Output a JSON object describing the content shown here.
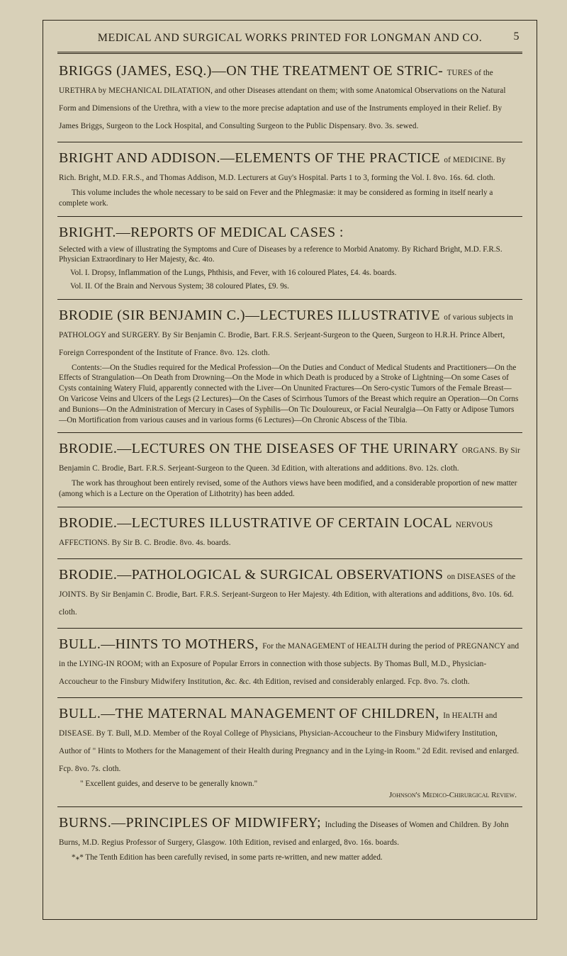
{
  "page": {
    "header_text": "MEDICAL AND SURGICAL WORKS PRINTED FOR LONGMAN AND CO.",
    "page_number": "5",
    "text_color": "#2a2418",
    "bg_color": "#d8d0b8",
    "rule_color": "#2a2418"
  },
  "entries": [
    {
      "title_big": "BRIGGS (JAMES, ESQ.)—ON THE TREATMENT OE STRIC-",
      "title_run": "TURES of the URETHRA by MECHANICAL DILATATION, and other Diseases attendant on them; with some Anatomical Observations on the Natural Form and Dimensions of the Urethra, with a view to the more precise adaptation and use of the Instruments employed in their Relief. By James Briggs, Surgeon to the Lock Hospital, and Consulting Surgeon to the Public Dispensary. 8vo. 3s. sewed."
    },
    {
      "title_big": "BRIGHT AND ADDISON.—ELEMENTS OF THE PRACTICE",
      "title_run": "of MEDICINE. By Rich. Bright, M.D. F.R.S., and Thomas Addison, M.D. Lecturers at Guy's Hospital. Parts 1 to 3, forming the Vol. I. 8vo. 16s. 6d. cloth.",
      "paras": [
        "This volume includes the whole necessary to be said on Fever and the Phlegmasiæ: it may be considered as forming in itself nearly a complete work."
      ]
    },
    {
      "title_big": "BRIGHT.—REPORTS OF MEDICAL CASES :",
      "title_run": "",
      "paras_noindent": [
        "Selected with a view of illustrating the Symptoms and Cure of Diseases by a reference to Morbid Anatomy. By Richard Bright, M.D. F.R.S. Physician Extraordinary to Her Majesty, &c. 4to."
      ],
      "subs": [
        "Vol. I. Dropsy, Inflammation of the Lungs, Phthisis, and Fever, with 16 coloured Plates, £4. 4s. boards.",
        "Vol. II. Of the Brain and Nervous System; 38 coloured Plates, £9. 9s."
      ]
    },
    {
      "title_big": "BRODIE (SIR BENJAMIN C.)—LECTURES ILLUSTRATIVE",
      "title_run": "of various subjects in PATHOLOGY and SURGERY. By Sir Benjamin C. Brodie, Bart. F.R.S. Serjeant-Surgeon to the Queen, Surgeon to H.R.H. Prince Albert, Foreign Correspondent of the Institute of France. 8vo. 12s. cloth.",
      "paras": [
        "Contents:—On the Studies required for the Medical Profession—On the Duties and Conduct of Medical Students and Practitioners—On the Effects of Strangulation—On Death from Drowning—On the Mode in which Death is produced by a Stroke of Lightning—On some Cases of Cysts containing Watery Fluid, apparently connected with the Liver—On Ununited Fractures—On Sero-cystic Tumors of the Female Breast—On Varicose Veins and Ulcers of the Legs (2 Lectures)—On the Cases of Scirrhous Tumors of the Breast which require an Operation—On Corns and Bunions—On the Administration of Mercury in Cases of Syphilis—On Tic Douloureux, or Facial Neuralgia—On Fatty or Adipose Tumors—On Mortification from various causes and in various forms (6 Lectures)—On Chronic Abscess of the Tibia."
      ]
    },
    {
      "title_big": "BRODIE.—LECTURES ON THE DISEASES OF THE URINARY",
      "title_run": "ORGANS. By Sir Benjamin C. Brodie, Bart. F.R.S. Serjeant-Surgeon to the Queen. 3d Edition, with alterations and additions. 8vo. 12s. cloth.",
      "paras": [
        "The work has throughout been entirely revised, some of the Authors views have been modified, and a considerable proportion of new matter (among which is a Lecture on the Operation of Lithotrity) has been added."
      ]
    },
    {
      "title_big": "BRODIE.—LECTURES ILLUSTRATIVE OF CERTAIN LOCAL",
      "title_run": "NERVOUS AFFECTIONS. By Sir B. C. Brodie. 8vo. 4s. boards."
    },
    {
      "title_big": "BRODIE.—PATHOLOGICAL & SURGICAL OBSERVATIONS",
      "title_run": "on DISEASES of the JOINTS. By Sir Benjamin C. Brodie, Bart. F.R.S. Serjeant-Surgeon to Her Majesty. 4th Edition, with alterations and additions, 8vo. 10s. 6d. cloth."
    },
    {
      "title_big": "BULL.—HINTS TO MOTHERS,",
      "title_run": "For the MANAGEMENT of HEALTH during the period of PREGNANCY and in the LYING-IN ROOM; with an Exposure of Popular Errors in connection with those subjects. By Thomas Bull, M.D., Physician-Accoucheur to the Finsbury Midwifery Institution, &c. &c. 4th Edition, revised and considerably enlarged. Fcp. 8vo. 7s. cloth."
    },
    {
      "title_big": "BULL.—THE MATERNAL MANAGEMENT OF CHILDREN,",
      "title_run": "In HEALTH and DISEASE. By T. Bull, M.D. Member of the Royal College of Physicians, Physician-Accoucheur to the Finsbury Midwifery Institution, Author of \" Hints to Mothers for the Management of their Health during Pregnancy and in the Lying-in Room.\" 2d Edit. revised and enlarged. Fcp. 8vo. 7s. cloth.",
      "quote": "\" Excellent guides, and deserve to be generally known.\"",
      "attrib": "Johnson's Medico-Chirurgical Review."
    },
    {
      "title_big": "BURNS.—PRINCIPLES OF MIDWIFERY;",
      "title_run": "Including the Diseases of Women and Children. By John Burns, M.D. Regius Professor of Surgery, Glasgow. 10th Edition, revised and enlarged, 8vo. 16s. boards.",
      "paras": [
        "*⁎* The Tenth Edition has been carefully revised, in some parts re-written, and new matter added."
      ]
    }
  ]
}
